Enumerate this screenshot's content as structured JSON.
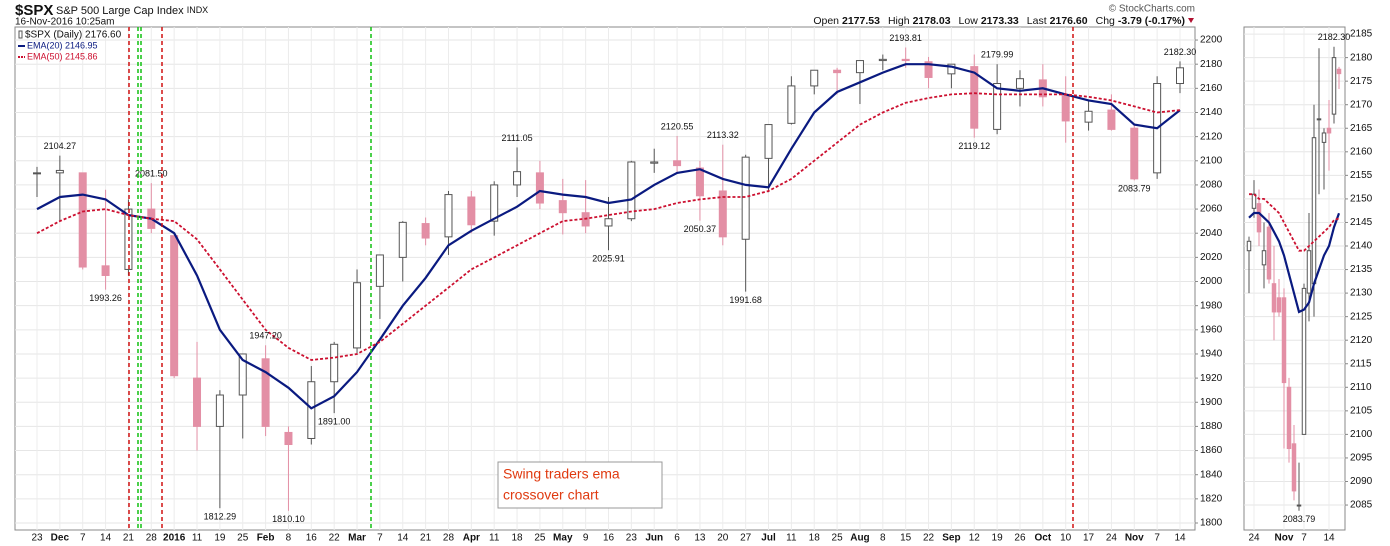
{
  "header": {
    "symbol": "$SPX",
    "name": "S&P 500 Large Cap Index",
    "exchange": "INDX",
    "date": "16-Nov-2016 10:25am",
    "copyright": "© StockCharts.com",
    "quote": [
      {
        "label": "Open",
        "value": "2177.53"
      },
      {
        "label": "High",
        "value": "2178.03"
      },
      {
        "label": "Low",
        "value": "2173.33"
      },
      {
        "label": "Last",
        "value": "2176.60"
      },
      {
        "label": "Chg",
        "value": "-3.79 (-0.17%)"
      }
    ]
  },
  "note": [
    "Swing traders ema",
    "crossover chart"
  ],
  "chart_data": [
    {
      "type": "candlestick",
      "candle_name": "$SPX (Daily) 2176.60",
      "up_color": "#555555",
      "down_color": "#e38fa5",
      "grid": true,
      "categories": [
        "23",
        "Dec",
        "7",
        "14",
        "21",
        "28",
        "2016",
        "11",
        "19",
        "25",
        "Feb",
        "8",
        "16",
        "22",
        "Mar",
        "7",
        "14",
        "21",
        "28",
        "Apr",
        "11",
        "18",
        "25",
        "May",
        "9",
        "16",
        "23",
        "Jun",
        "6",
        "13",
        "20",
        "27",
        "Jul",
        "11",
        "18",
        "25",
        "Aug",
        "8",
        "15",
        "22",
        "Sep",
        "12",
        "19",
        "26",
        "Oct",
        "10",
        "17",
        "24",
        "Nov",
        "7",
        "14"
      ],
      "candles": [
        [
          2090,
          2095,
          2070,
          2090
        ],
        [
          2090,
          2104.27,
          2050,
          2092
        ],
        [
          2090,
          2090,
          2010,
          2012
        ],
        [
          2013,
          2076,
          1993.26,
          2005
        ],
        [
          2010,
          2068,
          2005,
          2060
        ],
        [
          2060,
          2081.5,
          2040,
          2044
        ],
        [
          2038,
          2038,
          1920,
          1922
        ],
        [
          1920,
          1950,
          1860,
          1880
        ],
        [
          1880,
          1910,
          1812.29,
          1906
        ],
        [
          1906,
          1940,
          1870,
          1940
        ],
        [
          1936,
          1947.2,
          1872,
          1880
        ],
        [
          1875,
          1880,
          1810.1,
          1865
        ],
        [
          1870,
          1930,
          1865,
          1917
        ],
        [
          1917,
          1950,
          1891,
          1948
        ],
        [
          1945,
          2010,
          1940,
          1999
        ],
        [
          1996,
          2022,
          1969,
          2022
        ],
        [
          2020,
          2050,
          2000,
          2049
        ],
        [
          2048,
          2053,
          2030,
          2036
        ],
        [
          2037,
          2075,
          2022,
          2072
        ],
        [
          2070,
          2075,
          2040,
          2047
        ],
        [
          2050,
          2083,
          2038,
          2080
        ],
        [
          2080,
          2111.05,
          2070,
          2091
        ],
        [
          2090,
          2100,
          2060,
          2065
        ],
        [
          2067,
          2085,
          2039,
          2057
        ],
        [
          2057,
          2084,
          2040,
          2046
        ],
        [
          2046,
          2070,
          2025.91,
          2052
        ],
        [
          2052,
          2100,
          2050,
          2099
        ],
        [
          2098,
          2110,
          2090,
          2099
        ],
        [
          2100,
          2120.55,
          2090,
          2096
        ],
        [
          2094,
          2100,
          2050.37,
          2071
        ],
        [
          2075,
          2113.32,
          2030,
          2037
        ],
        [
          2035,
          2105,
          1991.68,
          2103
        ],
        [
          2102,
          2130,
          2074,
          2130
        ],
        [
          2131,
          2170,
          2130,
          2162
        ],
        [
          2162,
          2175,
          2155,
          2175
        ],
        [
          2175,
          2177,
          2155,
          2173
        ],
        [
          2173,
          2183,
          2147,
          2183
        ],
        [
          2183,
          2188,
          2175,
          2184
        ],
        [
          2184,
          2193.81,
          2177,
          2183
        ],
        [
          2182,
          2186,
          2160,
          2169
        ],
        [
          2172,
          2180,
          2160,
          2180
        ],
        [
          2178,
          2188,
          2119.12,
          2127
        ],
        [
          2126,
          2179.99,
          2122,
          2164
        ],
        [
          2160,
          2175,
          2145,
          2168
        ],
        [
          2167,
          2180,
          2145,
          2153
        ],
        [
          2155,
          2170,
          2115,
          2133
        ],
        [
          2132,
          2150,
          2125,
          2141
        ],
        [
          2142,
          2155,
          2125,
          2126
        ],
        [
          2127,
          2130,
          2083.79,
          2085
        ],
        [
          2090,
          2170,
          2085,
          2164
        ],
        [
          2164,
          2182.3,
          2156,
          2177
        ]
      ],
      "series": [
        {
          "name": "EMA(20) 2146.95",
          "color": "#0a1a80",
          "style": "solid",
          "values": [
            2060,
            2070,
            2072,
            2068,
            2055,
            2052,
            2040,
            2005,
            1960,
            1935,
            1925,
            1912,
            1895,
            1905,
            1925,
            1952,
            1980,
            2003,
            2030,
            2042,
            2052,
            2062,
            2075,
            2072,
            2070,
            2065,
            2068,
            2080,
            2090,
            2093,
            2085,
            2080,
            2078,
            2110,
            2140,
            2157,
            2165,
            2173,
            2180,
            2180,
            2178,
            2173,
            2160,
            2158,
            2160,
            2155,
            2150,
            2147,
            2130,
            2127,
            2142
          ]
        },
        {
          "name": "EMA(50) 2145.86",
          "color": "#cc1030",
          "style": "dotted",
          "values": [
            2040,
            2050,
            2058,
            2060,
            2055,
            2052,
            2050,
            2035,
            2010,
            1985,
            1960,
            1945,
            1935,
            1937,
            1940,
            1950,
            1965,
            1980,
            1995,
            2010,
            2020,
            2030,
            2040,
            2050,
            2052,
            2055,
            2058,
            2060,
            2065,
            2068,
            2070,
            2070,
            2075,
            2085,
            2100,
            2115,
            2130,
            2140,
            2148,
            2152,
            2155,
            2156,
            2155,
            2155,
            2155,
            2155,
            2153,
            2150,
            2145,
            2140,
            2142
          ]
        }
      ],
      "annotations": [
        {
          "value": 2104.27,
          "label": "2104.27"
        },
        {
          "value": 2081.5,
          "label": "2081.50"
        },
        {
          "value": 1993.26,
          "label": "1993.26"
        },
        {
          "value": 1947.2,
          "label": "1947.20"
        },
        {
          "value": 1812.29,
          "label": "1812.29"
        },
        {
          "value": 1810.1,
          "label": "1810.10"
        },
        {
          "value": 1891,
          "label": "1891.00"
        },
        {
          "value": 2111.05,
          "label": "2111.05"
        },
        {
          "value": 2025.91,
          "label": "2025.91"
        },
        {
          "value": 2120.55,
          "label": "2120.55"
        },
        {
          "value": 2050.37,
          "label": "2050.37"
        },
        {
          "value": 2113.32,
          "label": "2113.32"
        },
        {
          "value": 1991.68,
          "label": "1991.68"
        },
        {
          "value": 2193.81,
          "label": "2193.81"
        },
        {
          "value": 2119.12,
          "label": "2119.12"
        },
        {
          "value": 2179.99,
          "label": "2179.99"
        },
        {
          "value": 2083.79,
          "label": "2083.79"
        },
        {
          "value": 2182.3,
          "label": "2182.30"
        }
      ],
      "ylim": [
        1794.2,
        2210.8
      ],
      "yticks": [
        1800,
        1820,
        1840,
        1860,
        1880,
        1900,
        1920,
        1940,
        1960,
        1980,
        2000,
        2020,
        2040,
        2060,
        2080,
        2100,
        2120,
        2140,
        2160,
        2180,
        2200
      ]
    },
    {
      "type": "candlestick",
      "up_color": "#555555",
      "down_color": "#e38fa5",
      "grid": true,
      "categories": [
        null,
        "24",
        null,
        null,
        null,
        null,
        null,
        "Nov",
        null,
        null,
        null,
        "7",
        null,
        null,
        null,
        null,
        "14",
        null,
        null
      ],
      "candles": [
        [
          2139,
          2142,
          2130,
          2141
        ],
        [
          2148,
          2154,
          2146,
          2151
        ],
        [
          2149,
          2152,
          2140,
          2143
        ],
        [
          2136,
          2145,
          2131,
          2139
        ],
        [
          2144,
          2147,
          2132,
          2133
        ],
        [
          2132,
          2140,
          2120,
          2126
        ],
        [
          2129,
          2133,
          2125,
          2126
        ],
        [
          2129,
          2131,
          2097,
          2111
        ],
        [
          2110,
          2112,
          2094,
          2097
        ],
        [
          2098,
          2102,
          2086,
          2088
        ],
        [
          2085,
          2094,
          2083.79,
          2085
        ],
        [
          2100,
          2132,
          2100,
          2131
        ],
        [
          2130,
          2147,
          2124,
          2139
        ],
        [
          2132,
          2170,
          2125,
          2163
        ],
        [
          2167,
          2182,
          2151,
          2167
        ],
        [
          2162,
          2165,
          2152,
          2164
        ],
        [
          2165,
          2171,
          2156,
          2164
        ],
        [
          2168,
          2182.3,
          2166,
          2180
        ],
        [
          2177.53,
          2178.03,
          2173.33,
          2176.6
        ]
      ],
      "series": [
        {
          "color": "#0a1a80",
          "style": "solid",
          "values": [
            2146,
            2147,
            2147,
            2146,
            2145,
            2143,
            2141,
            2138,
            2134,
            2130,
            2126,
            2126.5,
            2128,
            2132,
            2135,
            2138,
            2140,
            2144,
            2146.95
          ]
        },
        {
          "color": "#cc1030",
          "style": "dotted",
          "values": [
            2151,
            2151,
            2150,
            2150,
            2149,
            2148,
            2147,
            2145,
            2143,
            2141,
            2139,
            2139,
            2140,
            2141,
            2142,
            2143,
            2144,
            2145.5,
            2145.86
          ]
        }
      ],
      "annotations": [
        {
          "value": 2182.3,
          "label": "2182.30"
        },
        {
          "value": 2083.79,
          "label": "2083.79"
        }
      ],
      "ylim": [
        2079.7,
        2186.5
      ],
      "yticks": [
        2085,
        2090,
        2095,
        2100,
        2105,
        2110,
        2115,
        2120,
        2125,
        2130,
        2135,
        2140,
        2145,
        2150,
        2155,
        2160,
        2165,
        2170,
        2175,
        2180,
        2185
      ]
    }
  ]
}
